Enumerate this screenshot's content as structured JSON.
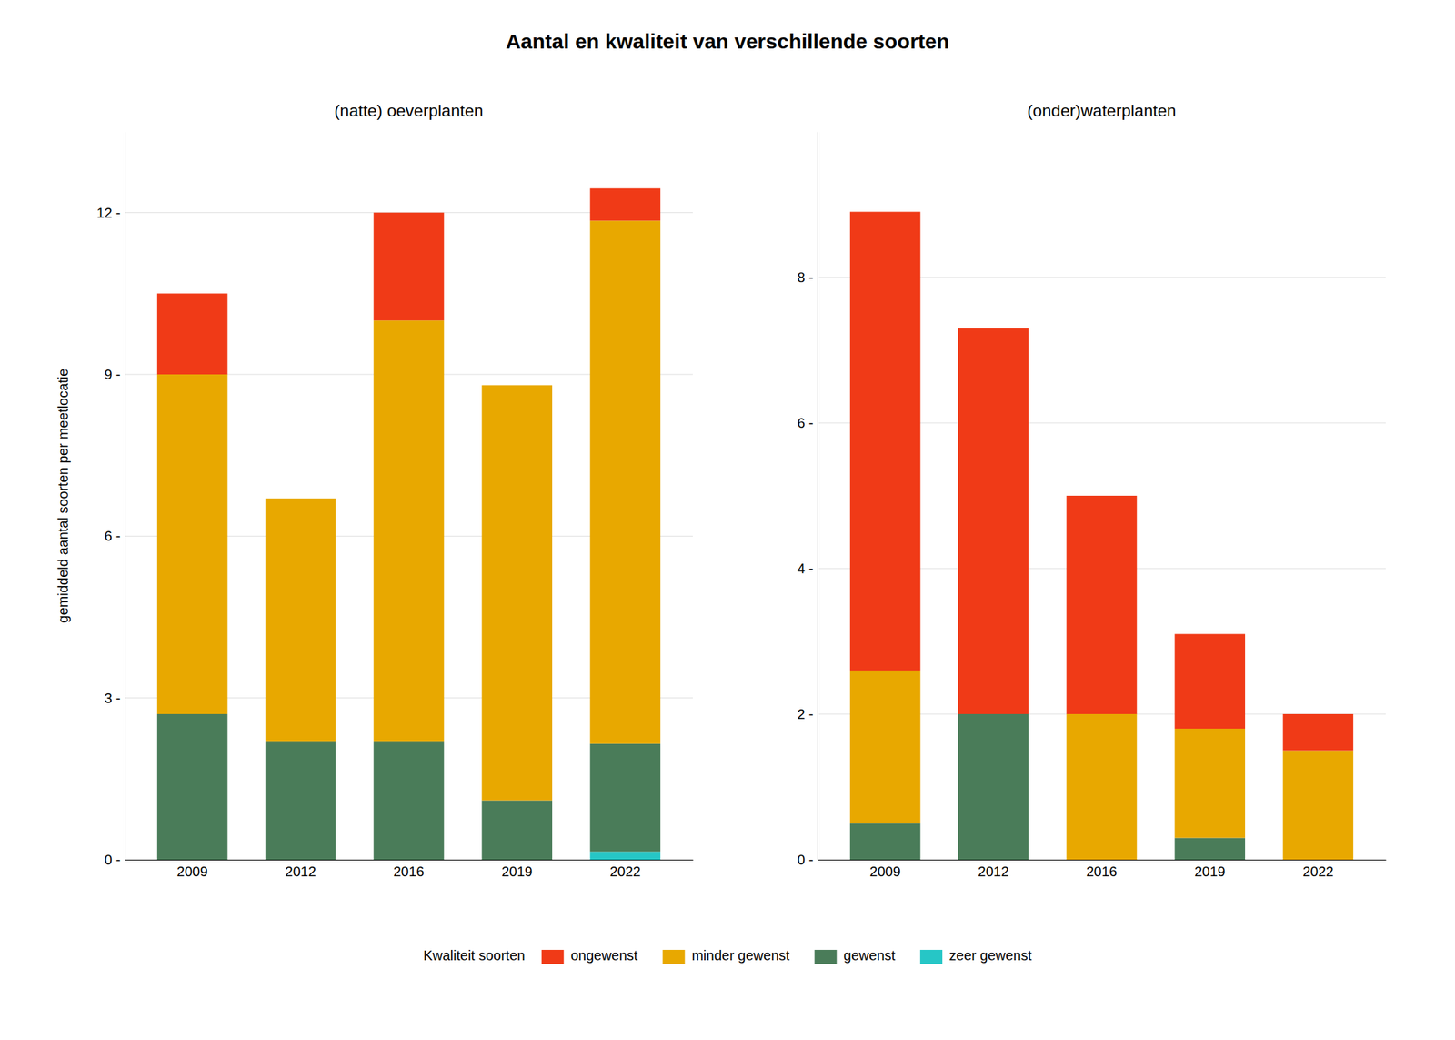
{
  "chart_data": [
    {
      "type": "bar",
      "stacked": true,
      "grid": true,
      "legend": "bottom",
      "title": "Aantal en kwaliteit van verschillende soorten",
      "subtitle": "(natte) oeverplanten",
      "ylabel": "gemiddeld aantal soorten per meetlocatie",
      "legend_title": "Kwaliteit soorten",
      "categories": [
        "2009",
        "2012",
        "2016",
        "2019",
        "2022"
      ],
      "series": [
        {
          "name": "zeer gewenst",
          "color": "#26C6C6",
          "values": [
            0,
            0,
            0,
            0,
            0.15
          ]
        },
        {
          "name": "gewenst",
          "color": "#4A7C59",
          "values": [
            2.7,
            2.2,
            2.2,
            1.1,
            2.0
          ]
        },
        {
          "name": "minder gewenst",
          "color": "#E8A800",
          "values": [
            6.3,
            4.5,
            7.8,
            7.7,
            9.7
          ]
        },
        {
          "name": "ongewenst",
          "color": "#F03A17",
          "values": [
            1.5,
            0,
            2.0,
            0,
            0.6
          ]
        }
      ],
      "ylim": [
        0,
        13.5
      ],
      "yticks": [
        {
          "value": 0,
          "label": "0 -"
        },
        {
          "value": 3,
          "label": "3 -"
        },
        {
          "value": 6,
          "label": "6 -"
        },
        {
          "value": 9,
          "label": "9 -"
        },
        {
          "value": 12,
          "label": "12 -"
        }
      ]
    },
    {
      "type": "bar",
      "stacked": true,
      "grid": true,
      "subtitle": "(onder)waterplanten",
      "categories": [
        "2009",
        "2012",
        "2016",
        "2019",
        "2022"
      ],
      "series": [
        {
          "name": "zeer gewenst",
          "color": "#26C6C6",
          "values": [
            0,
            0,
            0,
            0,
            0
          ]
        },
        {
          "name": "gewenst",
          "color": "#4A7C59",
          "values": [
            0.5,
            2.0,
            0,
            0.3,
            0
          ]
        },
        {
          "name": "minder gewenst",
          "color": "#E8A800",
          "values": [
            2.1,
            0,
            2.0,
            1.5,
            1.5
          ]
        },
        {
          "name": "ongewenst",
          "color": "#F03A17",
          "values": [
            6.3,
            5.3,
            3.0,
            1.3,
            0.5
          ]
        }
      ],
      "ylim": [
        0,
        10.0
      ],
      "yticks": [
        {
          "value": 0,
          "label": "0 -"
        },
        {
          "value": 2,
          "label": "2 -"
        },
        {
          "value": 4,
          "label": "4 -"
        },
        {
          "value": 6,
          "label": "6 -"
        },
        {
          "value": 8,
          "label": "8 -"
        }
      ]
    }
  ]
}
